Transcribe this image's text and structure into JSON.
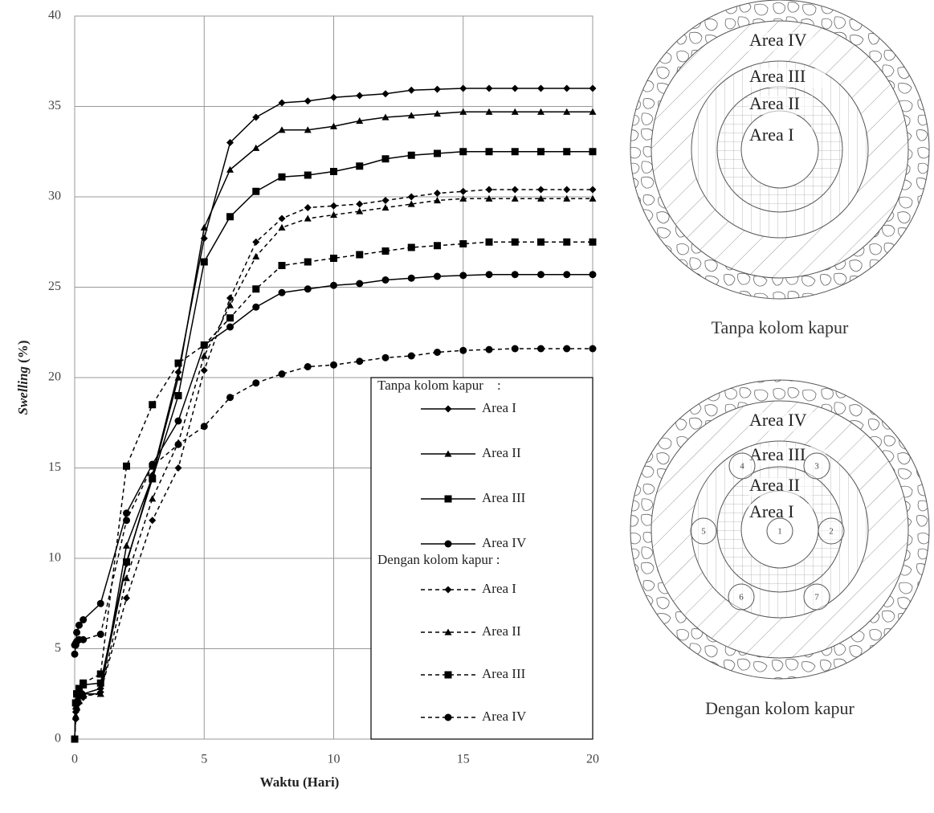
{
  "chart_data": {
    "type": "line",
    "xlabel": "Waktu (Hari)",
    "ylabel": {
      "emphasis": "Swelling",
      "text": "(%)"
    },
    "x": [
      0,
      0.04,
      0.08,
      0.17,
      0.33,
      1,
      2,
      3,
      4,
      5,
      6,
      7,
      8,
      9,
      10,
      11,
      12,
      13,
      14,
      15,
      16,
      17,
      18,
      19,
      20
    ],
    "xlim": [
      0,
      20
    ],
    "xticks": [
      0,
      5,
      10,
      15,
      20
    ],
    "ylim": [
      0,
      40
    ],
    "yticks": [
      0,
      5,
      10,
      15,
      20,
      25,
      30,
      35,
      40
    ],
    "grid": true,
    "legend_titles": [
      "Tanpa kolom kapur    :",
      "Dengan kolom kapur :"
    ],
    "series": [
      {
        "name": "Area I",
        "color": "#000000",
        "line_style": "solid",
        "marker": "diamond",
        "values": [
          0,
          1.5,
          2.0,
          2.3,
          2.5,
          2.8,
          9.7,
          14.6,
          20.3,
          27.7,
          33.0,
          34.4,
          35.2,
          35.3,
          35.5,
          35.6,
          35.7,
          35.9,
          35.95,
          36.0,
          36.0,
          36.0,
          36.0,
          36.0,
          36.0
        ]
      },
      {
        "name": "Area II",
        "color": "#000000",
        "line_style": "solid",
        "marker": "triangle",
        "values": [
          0,
          1.8,
          2.2,
          2.4,
          2.5,
          2.5,
          10.7,
          14.5,
          20.0,
          28.3,
          31.5,
          32.7,
          33.7,
          33.7,
          33.9,
          34.2,
          34.4,
          34.5,
          34.6,
          34.7,
          34.7,
          34.7,
          34.7,
          34.7,
          34.7
        ]
      },
      {
        "name": "Area III",
        "color": "#000000",
        "line_style": "solid",
        "marker": "square",
        "values": [
          0,
          2.0,
          2.5,
          2.7,
          3.0,
          3.1,
          9.8,
          14.4,
          19.0,
          26.4,
          28.9,
          30.3,
          31.1,
          31.2,
          31.4,
          31.7,
          32.1,
          32.3,
          32.4,
          32.5,
          32.5,
          32.5,
          32.5,
          32.5,
          32.5
        ]
      },
      {
        "name": "Area IV",
        "color": "#000000",
        "line_style": "solid",
        "marker": "circle",
        "values": [
          4.7,
          5.2,
          5.9,
          6.3,
          6.6,
          7.5,
          12.5,
          15.2,
          17.6,
          21.8,
          22.8,
          23.9,
          24.7,
          24.9,
          25.1,
          25.2,
          25.4,
          25.5,
          25.6,
          25.65,
          25.7,
          25.7,
          25.7,
          25.7,
          25.7
        ]
      },
      {
        "name": "Area I",
        "color": "#000000",
        "line_style": "dashed",
        "marker": "diamond",
        "values": [
          0,
          1.1,
          1.6,
          2.0,
          2.3,
          2.6,
          7.8,
          12.1,
          15.0,
          20.4,
          24.4,
          27.5,
          28.8,
          29.4,
          29.5,
          29.6,
          29.8,
          30.0,
          30.2,
          30.3,
          30.4,
          30.4,
          30.4,
          30.4,
          30.4
        ]
      },
      {
        "name": "Area II",
        "color": "#000000",
        "line_style": "dashed",
        "marker": "triangle",
        "values": [
          0,
          1.3,
          1.8,
          2.1,
          2.4,
          2.5,
          8.9,
          13.3,
          16.4,
          21.2,
          24.0,
          26.7,
          28.3,
          28.8,
          29.0,
          29.2,
          29.4,
          29.6,
          29.8,
          29.9,
          29.9,
          29.9,
          29.9,
          29.9,
          29.9
        ]
      },
      {
        "name": "Area III",
        "color": "#000000",
        "line_style": "dashed",
        "marker": "square",
        "values": [
          0,
          2.0,
          2.5,
          2.8,
          3.1,
          3.6,
          15.1,
          18.5,
          20.8,
          21.8,
          23.3,
          24.9,
          26.2,
          26.4,
          26.6,
          26.8,
          27.0,
          27.2,
          27.3,
          27.4,
          27.5,
          27.5,
          27.5,
          27.5,
          27.5
        ]
      },
      {
        "name": "Area IV",
        "color": "#000000",
        "line_style": "dashed",
        "marker": "circle",
        "values": [
          5.2,
          5.3,
          5.4,
          5.5,
          5.5,
          5.8,
          12.1,
          15.1,
          16.3,
          17.3,
          18.9,
          19.7,
          20.2,
          20.6,
          20.7,
          20.9,
          21.1,
          21.2,
          21.4,
          21.5,
          21.55,
          21.6,
          21.6,
          21.6,
          21.6
        ]
      }
    ]
  },
  "diagrams": [
    {
      "caption": "Tanpa kolom kapur",
      "areas": [
        "Area IV",
        "Area III",
        "Area II",
        "Area I"
      ],
      "columns": []
    },
    {
      "caption": "Dengan kolom kapur",
      "areas": [
        "Area IV",
        "Area III",
        "Area II",
        "Area I"
      ],
      "columns": [
        "1",
        "2",
        "3",
        "4",
        "5",
        "6",
        "7"
      ]
    }
  ]
}
